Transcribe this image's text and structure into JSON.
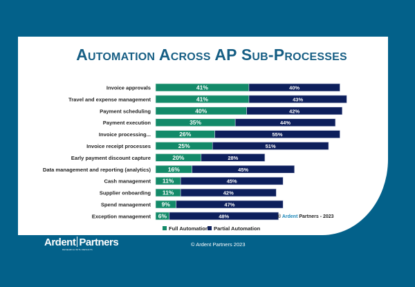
{
  "chart_data": {
    "type": "bar",
    "orientation": "horizontal",
    "stacked": true,
    "title": "Automation Across AP Sub-Processes",
    "categories": [
      "Invoice approvals",
      "Travel and expense management",
      "Payment scheduling",
      "Payment execution",
      "Invoice processing...",
      "Invoice receipt processes",
      "Early payment discount capture",
      "Data management and reporting (analytics)",
      "Cash management",
      "Supplier onboarding",
      "Spend management",
      "Exception management"
    ],
    "series": [
      {
        "name": "Full Automation",
        "color": "#138a69",
        "values": [
          41,
          41,
          40,
          35,
          26,
          25,
          20,
          16,
          11,
          11,
          9,
          6
        ]
      },
      {
        "name": "Partial Automation",
        "color": "#0d1f5c",
        "values": [
          40,
          43,
          42,
          44,
          55,
          51,
          28,
          45,
          45,
          42,
          47,
          48
        ]
      }
    ],
    "value_format": "percent",
    "grid": false,
    "legend": "bottom",
    "annotation": {
      "prefix": "© ",
      "brand": "Ardent",
      "rest": " Partners - 2023",
      "brand_color": "#1a86b8"
    }
  },
  "footer": {
    "logo_left": "Ardent",
    "logo_right": "Partners",
    "tagline": "RESEARCH WITH RESULTS",
    "copyright": "© Ardent Partners 2023"
  },
  "colors": {
    "background": "#03618a",
    "title": "#165e84"
  }
}
